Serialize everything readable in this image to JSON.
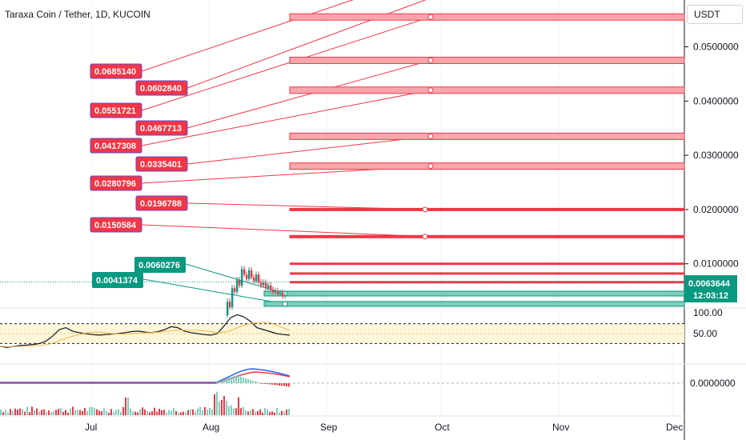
{
  "header": {
    "title": "Taraxa Coin / Tether, 1D, KUCOIN",
    "currency": "USDT"
  },
  "price_axis": {
    "ticks": [
      "0.0500000",
      "0.0400000",
      "0.0300000",
      "0.0200000",
      "0.0100000"
    ],
    "last_price": "0.0063644",
    "countdown": "12:03:12"
  },
  "oscillator_axis": {
    "ticks": [
      "100.00",
      "50.00"
    ]
  },
  "macd_axis": {
    "ticks": [
      "0.0000000"
    ]
  },
  "time_axis": {
    "ticks": [
      "Jul",
      "Aug",
      "Sep",
      "Oct",
      "Nov",
      "Dec"
    ]
  },
  "colors": {
    "red": "#f23645",
    "red_fill": "#f7a6ad",
    "green": "#089981",
    "green_fill": "#7fcdbb",
    "callout_red": "#f23645",
    "callout_red_border": "#5b4bd6",
    "callout_green": "#089981"
  },
  "chart_data": {
    "type": "line",
    "title": "Taraxa Coin / Tether, 1D, KUCOIN",
    "y_scale": "linear",
    "resistance_levels": [
      {
        "label": "0.0685140",
        "color": "red"
      },
      {
        "label": "0.0602840",
        "color": "red"
      },
      {
        "label": "0.0551721",
        "color": "red"
      },
      {
        "label": "0.0467713",
        "color": "red"
      },
      {
        "label": "0.0417308",
        "color": "red"
      },
      {
        "label": "0.0335401",
        "color": "red"
      },
      {
        "label": "0.0280796",
        "color": "red"
      },
      {
        "label": "0.0196788",
        "color": "red"
      },
      {
        "label": "0.0150584",
        "color": "red"
      }
    ],
    "support_levels": [
      {
        "label": "0.0060276",
        "color": "green"
      },
      {
        "label": "0.0041374",
        "color": "green"
      }
    ],
    "last_price": 0.0063644,
    "oscillator": {
      "ticks": [
        100,
        50
      ],
      "values": [
        25,
        22,
        24,
        26,
        27,
        28,
        30,
        35,
        45,
        58,
        62,
        55,
        52,
        50,
        48,
        47,
        48,
        49,
        50,
        52,
        54,
        55,
        53,
        52,
        54,
        58,
        64,
        62,
        55,
        52,
        50,
        48,
        47,
        50,
        65,
        82,
        88,
        84,
        75,
        62,
        58,
        54,
        50,
        48,
        47
      ]
    },
    "macd": {
      "ticks": [
        0
      ]
    }
  }
}
